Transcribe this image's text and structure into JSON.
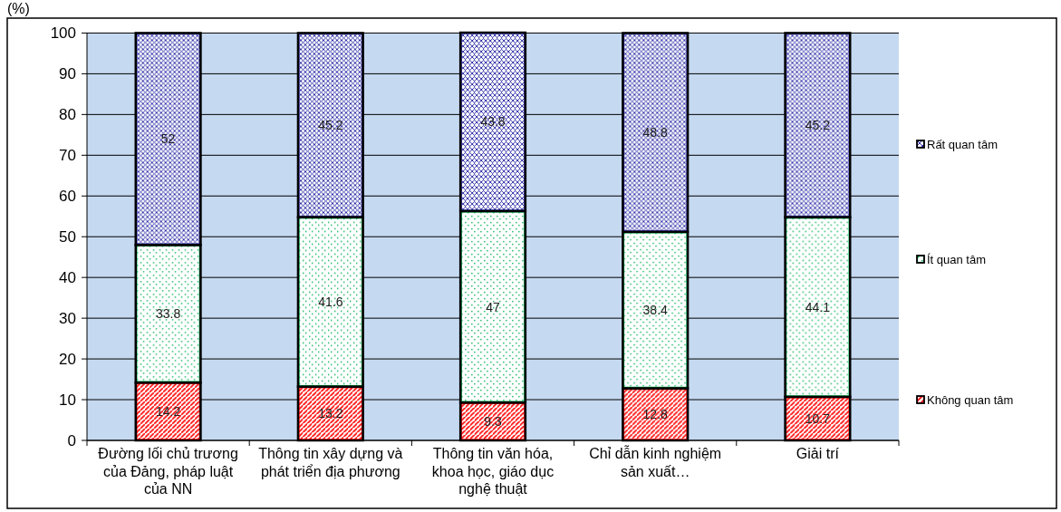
{
  "chart_data": {
    "type": "bar",
    "stacked": true,
    "ylabel": "(%)",
    "categories": [
      "Đường lối chủ trương của Đảng, pháp luật của NN",
      "Thông tin xây dựng và phát triển địa phương",
      "Thông tin văn hóa, khoa học, giáo dục nghệ thuật",
      "Chỉ dẫn kinh nghiệm sản xuất…",
      "Giải trí"
    ],
    "series": [
      {
        "name": "Không quan tâm",
        "color": "#ff0000",
        "values": [
          14.2,
          13.2,
          9.3,
          12.8,
          10.7
        ]
      },
      {
        "name": "Ít quan tâm",
        "color": "#00b050",
        "values": [
          33.8,
          41.6,
          47,
          38.4,
          44.1
        ]
      },
      {
        "name": "Rất quan tâm",
        "color": "#3333aa",
        "values": [
          52,
          45.2,
          43.8,
          48.8,
          45.2
        ]
      }
    ],
    "ylim": [
      0,
      100.1
    ],
    "yticks": [
      0,
      10,
      20,
      30,
      40,
      50,
      60,
      70,
      80,
      90,
      100
    ],
    "grid": "y",
    "legend": "right",
    "data_labels": true
  }
}
